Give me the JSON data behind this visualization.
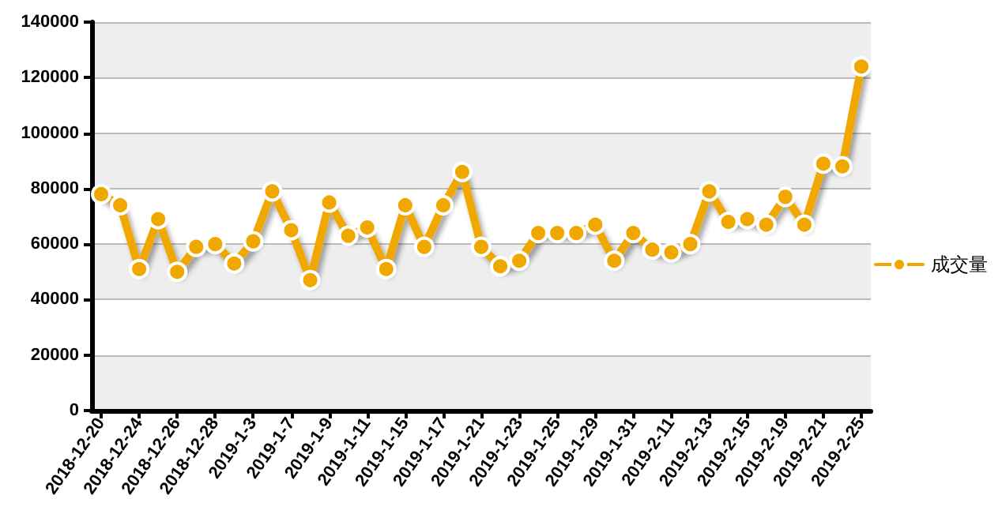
{
  "chart_data": {
    "type": "line",
    "categories": [
      "2018-12-20",
      null,
      "2018-12-24",
      null,
      "2018-12-26",
      null,
      "2018-12-28",
      null,
      "2019-1-3",
      null,
      "2019-1-7",
      null,
      "2019-1-9",
      null,
      "2019-1-11",
      null,
      "2019-1-15",
      null,
      "2019-1-17",
      null,
      "2019-1-21",
      null,
      "2019-1-23",
      null,
      "2019-1-25",
      null,
      "2019-1-29",
      null,
      "2019-1-31",
      null,
      "2019-2-11",
      null,
      "2019-2-13",
      null,
      "2019-2-15",
      null,
      "2019-2-19",
      null,
      "2019-2-21",
      null,
      "2019-2-25"
    ],
    "series": [
      {
        "name": "成交量",
        "color": "#f0a800",
        "values": [
          78000,
          74000,
          51000,
          69000,
          50000,
          59000,
          60000,
          53000,
          61000,
          79000,
          65000,
          47000,
          75000,
          63000,
          66000,
          51000,
          74000,
          59000,
          74000,
          86000,
          59000,
          52000,
          54000,
          64000,
          64000,
          64000,
          67000,
          54000,
          64000,
          58000,
          57000,
          60000,
          79000,
          68000,
          69000,
          67000,
          77000,
          67000,
          89000,
          88000,
          124000
        ]
      }
    ],
    "ylim": [
      0,
      140000
    ],
    "yticks": [
      0,
      20000,
      40000,
      60000,
      80000,
      100000,
      120000,
      140000
    ],
    "grid": "y",
    "legend": "right",
    "marker": "circle",
    "line_style": "solid"
  }
}
